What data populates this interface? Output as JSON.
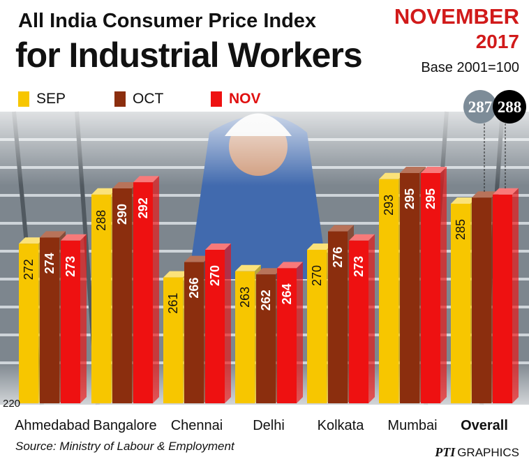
{
  "header": {
    "title_line1": "All India Consumer Price Index",
    "title_line2": "for Industrial Workers",
    "month": "NOVEMBER",
    "year": "2017",
    "base_note": "Base 2001=100"
  },
  "footer": {
    "source": "Source: Ministry of Labour & Employment",
    "credit_logo": "PTI",
    "credit_text": "GRAPHICS"
  },
  "colors": {
    "sep": "#f7c600",
    "oct": "#8b2e0e",
    "nov": "#ee1111",
    "badge_oct": "#7d8c98",
    "badge_nov": "#000000"
  },
  "chart_data": {
    "type": "bar",
    "title": "All India Consumer Price Index for Industrial Workers",
    "subtitle": "NOVEMBER 2017",
    "note": "Base 2001=100",
    "categories": [
      "Ahmedabad",
      "Bangalore",
      "Chennai",
      "Delhi",
      "Kolkata",
      "Mumbai",
      "Overall"
    ],
    "series": [
      {
        "name": "SEP",
        "values": [
          272,
          288,
          261,
          263,
          270,
          293,
          285
        ]
      },
      {
        "name": "OCT",
        "values": [
          274,
          290,
          266,
          262,
          276,
          295,
          287
        ]
      },
      {
        "name": "NOV",
        "values": [
          273,
          292,
          270,
          264,
          273,
          295,
          288
        ]
      }
    ],
    "value_labels_shown": {
      "SEP": [
        "272",
        "288",
        "261",
        "263",
        "270",
        "293",
        "285"
      ],
      "OCT": [
        "274",
        "290",
        "266",
        "262",
        "276",
        "295",
        ""
      ],
      "NOV": [
        "273",
        "292",
        "270",
        "264",
        "273",
        "295",
        ""
      ]
    },
    "overall_badges": [
      {
        "series": "OCT",
        "label": "287"
      },
      {
        "series": "NOV",
        "label": "288"
      }
    ],
    "y_axis_min_label": "220",
    "ylim": [
      220,
      300
    ],
    "legend": {
      "placement": "top-left",
      "items": [
        "SEP",
        "OCT",
        "NOV"
      ]
    },
    "grid": false
  }
}
